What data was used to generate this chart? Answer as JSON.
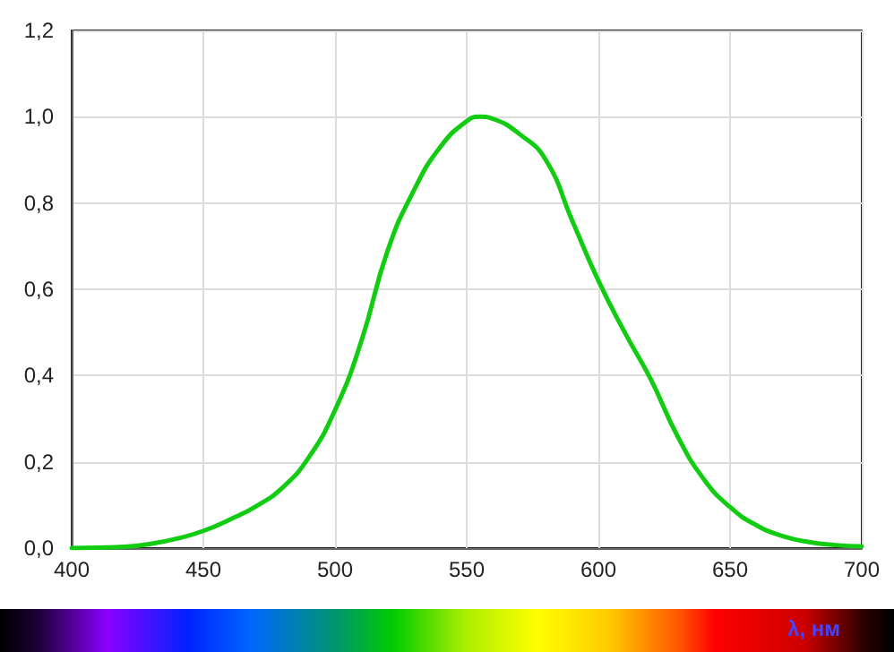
{
  "chart_data": {
    "type": "line",
    "xlabel": "λ, нм",
    "x": [
      400,
      410,
      420,
      430,
      440,
      450,
      460,
      470,
      480,
      490,
      500,
      510,
      520,
      530,
      540,
      550,
      555,
      560,
      570,
      580,
      590,
      600,
      610,
      620,
      630,
      640,
      650,
      660,
      670,
      680,
      690,
      700
    ],
    "series": [
      {
        "color": "#11cc11",
        "values": [
          0.0,
          0.001,
          0.003,
          0.01,
          0.022,
          0.04,
          0.066,
          0.097,
          0.14,
          0.21,
          0.32,
          0.48,
          0.69,
          0.83,
          0.93,
          0.99,
          1.0,
          0.995,
          0.96,
          0.9,
          0.76,
          0.62,
          0.5,
          0.39,
          0.26,
          0.16,
          0.095,
          0.053,
          0.028,
          0.014,
          0.007,
          0.004
        ]
      }
    ],
    "xlim": [
      400,
      700
    ],
    "xticks": [
      400,
      450,
      500,
      550,
      600,
      650,
      700
    ],
    "ylim": [
      0,
      1.2
    ],
    "yticks": [
      {
        "value": 0,
        "label": "0,0"
      },
      {
        "value": 0.2,
        "label": "0,2"
      },
      {
        "value": 0.4,
        "label": "0,4"
      },
      {
        "value": 0.6,
        "label": "0,6"
      },
      {
        "value": 0.8,
        "label": "0,8"
      },
      {
        "value": 1.0,
        "label": "1,0"
      },
      {
        "value": 1.2,
        "label": "1,2"
      }
    ],
    "grid": true,
    "marker": "none",
    "line_style": "solid"
  }
}
